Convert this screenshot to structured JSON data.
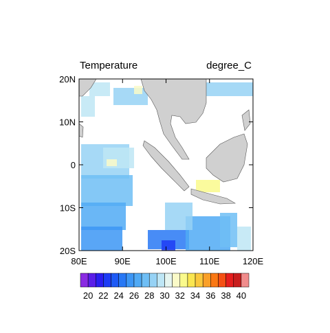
{
  "map": {
    "title_left": "Temperature",
    "title_right": "degree_C",
    "lonlim": [
      80,
      120
    ],
    "latlim": [
      -20,
      20
    ],
    "lon_ticks": [
      {
        "value": 80,
        "label": "80E"
      },
      {
        "value": 90,
        "label": "90E"
      },
      {
        "value": 100,
        "label": "100E"
      },
      {
        "value": 110,
        "label": "110E"
      },
      {
        "value": 120,
        "label": "120E"
      }
    ],
    "lat_ticks": [
      {
        "value": 20,
        "label": "20N"
      },
      {
        "value": 10,
        "label": "10N"
      },
      {
        "value": 0,
        "label": "0"
      },
      {
        "value": -10,
        "label": "10S"
      },
      {
        "value": -20,
        "label": "20S"
      }
    ],
    "land_color": "#d0d0d0",
    "colorbar": {
      "colors": [
        "#8a2be2",
        "#5a1ee8",
        "#2b1ef0",
        "#1e3cf5",
        "#1e5af5",
        "#2878f5",
        "#3c96f5",
        "#50aaf5",
        "#6ebef5",
        "#96d2f5",
        "#bee6f5",
        "#e6f5f0",
        "#fafac8",
        "#fafa8c",
        "#fae650",
        "#fac83c",
        "#faa028",
        "#fa7814",
        "#f55014",
        "#e61e1e",
        "#c81e1e",
        "#f08c8c"
      ],
      "labels": [
        20,
        22,
        24,
        26,
        28,
        30,
        32,
        34,
        36,
        38,
        40
      ]
    }
  }
}
